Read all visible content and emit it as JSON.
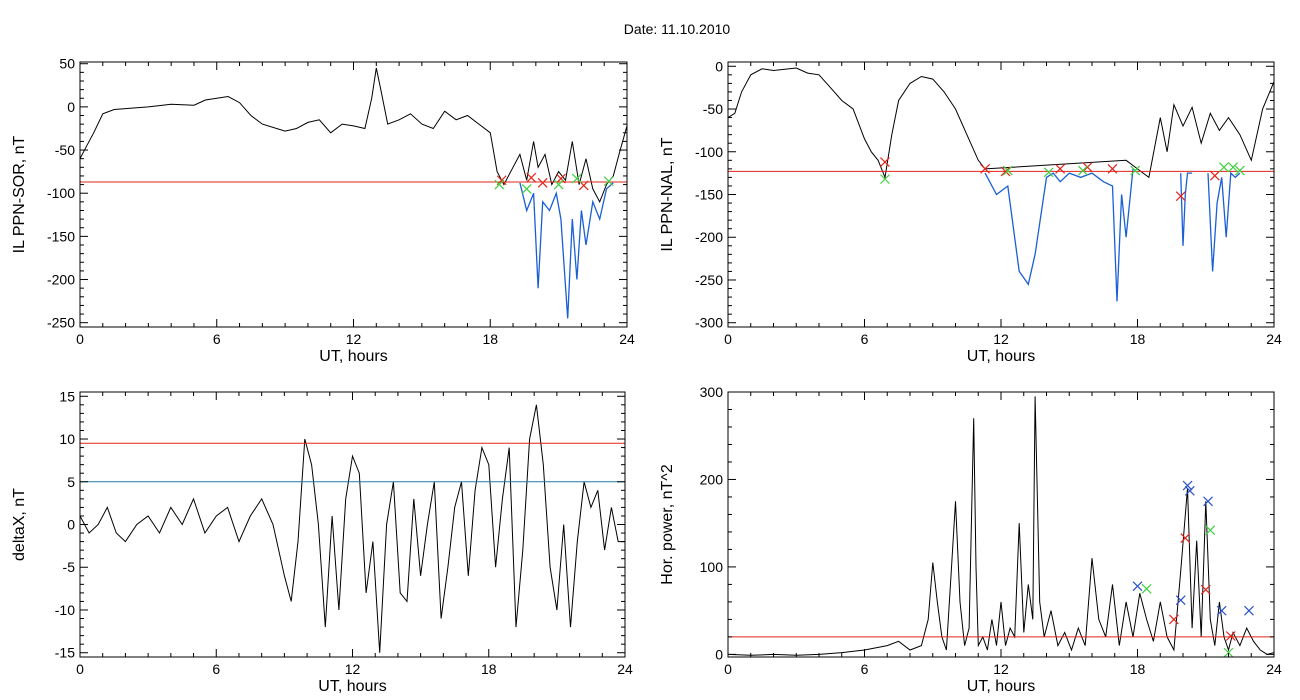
{
  "figure": {
    "title": "Date:  11.10.2010"
  },
  "colors": {
    "trace": "#000000",
    "segment": "#1a5fd6",
    "threshold": "#e2231a",
    "cyan_line": "#1f7fa6",
    "marker_red": "#e2231a",
    "marker_green": "#3fcf3f",
    "marker_blue": "#2a52c8"
  },
  "chart_data": [
    {
      "id": "tl",
      "type": "line",
      "title": "",
      "xlabel": "UT, hours",
      "ylabel": "IL PPN-SOR, nT",
      "xlim": [
        0,
        24
      ],
      "ylim": [
        -255,
        52
      ],
      "xticks": [
        0,
        6,
        12,
        18,
        24
      ],
      "yticks": [
        -250,
        -200,
        -150,
        -100,
        -50,
        0,
        50
      ],
      "grid": false,
      "series": [
        {
          "role": "trace",
          "color": "#000000",
          "x": [
            0,
            0.3,
            0.6,
            1,
            1.5,
            2,
            3,
            4,
            5,
            5.5,
            6,
            6.5,
            7,
            7.5,
            8,
            9,
            9.5,
            10,
            10.5,
            11,
            11.5,
            12,
            12.5,
            12.8,
            13,
            13.2,
            13.5,
            14,
            14.5,
            15,
            15.5,
            16,
            16.5,
            17,
            17.5,
            18,
            18.3,
            18.6,
            19,
            19.3,
            19.6,
            19.9,
            20.1,
            20.4,
            20.7,
            21,
            21.3,
            21.6,
            21.9,
            22.2,
            22.5,
            22.8,
            23.1,
            23.4,
            23.7,
            24
          ],
          "y": [
            -60,
            -45,
            -30,
            -8,
            -3,
            -2,
            0,
            3,
            2,
            8,
            10,
            12,
            5,
            -10,
            -20,
            -28,
            -25,
            -18,
            -15,
            -30,
            -20,
            -22,
            -25,
            10,
            45,
            20,
            -20,
            -15,
            -8,
            -20,
            -25,
            -5,
            -15,
            -10,
            -20,
            -30,
            -75,
            -90,
            -70,
            -55,
            -85,
            -40,
            -70,
            -55,
            -90,
            -75,
            -85,
            -40,
            -90,
            -60,
            -95,
            -110,
            -90,
            -80,
            -50,
            -22
          ]
        },
        {
          "role": "segment",
          "color": "#1a5fd6",
          "x": [
            19.3,
            19.6,
            19.9,
            20.1,
            20.3,
            20.6,
            20.9,
            21.1,
            21.4,
            21.6,
            21.8,
            22.0,
            22.2,
            22.5,
            22.8,
            23.1,
            23.4
          ],
          "y": [
            -88,
            -120,
            -100,
            -210,
            -110,
            -120,
            -100,
            -130,
            -245,
            -130,
            -200,
            -120,
            -160,
            -110,
            -130,
            -95,
            -88
          ]
        },
        {
          "role": "threshold",
          "color": "#e2231a",
          "x": [
            0,
            24
          ],
          "y": [
            -87,
            -87
          ]
        },
        {
          "role": "markers-red",
          "color": "#e2231a",
          "x": [
            18.5,
            19.8,
            20.3,
            21.1,
            22.1
          ],
          "y": [
            -85,
            -82,
            -88,
            -83,
            -91
          ]
        },
        {
          "role": "markers-green",
          "color": "#3fcf3f",
          "x": [
            18.4,
            19.6,
            21.0,
            21.8,
            23.2
          ],
          "y": [
            -90,
            -95,
            -90,
            -83,
            -86
          ]
        }
      ]
    },
    {
      "id": "tr",
      "type": "line",
      "title": "",
      "xlabel": "UT, hours",
      "ylabel": "IL PPN-NAL, nT",
      "xlim": [
        0,
        24
      ],
      "ylim": [
        -305,
        5
      ],
      "xticks": [
        0,
        6,
        12,
        18,
        24
      ],
      "yticks": [
        -300,
        -250,
        -200,
        -150,
        -100,
        -50,
        0
      ],
      "grid": false,
      "series": [
        {
          "role": "trace",
          "color": "#000000",
          "x": [
            0,
            0.3,
            0.6,
            1,
            1.5,
            2,
            3,
            3.5,
            4,
            4.5,
            5,
            5.5,
            6,
            6.3,
            6.6,
            6.9,
            7.2,
            7.5,
            8,
            8.5,
            9,
            9.5,
            10,
            10.5,
            11,
            11.3,
            17.5,
            18,
            18.5,
            19,
            19.3,
            19.6,
            20,
            20.4,
            20.8,
            21.2,
            21.6,
            22,
            22.5,
            23,
            23.5,
            24
          ],
          "y": [
            -60,
            -55,
            -30,
            -10,
            -3,
            -5,
            -2,
            -8,
            -10,
            -25,
            -40,
            -50,
            -85,
            -100,
            -110,
            -130,
            -80,
            -40,
            -20,
            -12,
            -15,
            -30,
            -50,
            -80,
            -110,
            -120,
            -110,
            -120,
            -130,
            -60,
            -100,
            -45,
            -70,
            -48,
            -90,
            -55,
            -75,
            -60,
            -80,
            -110,
            -50,
            -18
          ]
        },
        {
          "role": "segment",
          "color": "#1a5fd6",
          "x": [
            11.3,
            11.8,
            12.3,
            12.8,
            13.2,
            13.5,
            14,
            14.3,
            14.6,
            15,
            15.5,
            16,
            16.5,
            16.9,
            17.1,
            17.3,
            17.5,
            17.8
          ],
          "y": [
            -125,
            -150,
            -140,
            -240,
            -255,
            -220,
            -130,
            -125,
            -135,
            -125,
            -130,
            -125,
            -135,
            -140,
            -275,
            -150,
            -200,
            -120
          ]
        },
        {
          "role": "segment",
          "color": "#1a5fd6",
          "x": [
            19.9,
            20.0,
            20.1,
            20.2,
            20.4
          ],
          "y": [
            -125,
            -210,
            -150,
            -125,
            -125
          ]
        },
        {
          "role": "segment",
          "color": "#1a5fd6",
          "x": [
            21.1,
            21.3,
            21.5,
            21.7,
            21.9,
            22.1,
            22.3,
            22.5
          ],
          "y": [
            -125,
            -240,
            -160,
            -130,
            -200,
            -125,
            -130,
            -125
          ]
        },
        {
          "role": "threshold",
          "color": "#e2231a",
          "x": [
            0,
            24
          ],
          "y": [
            -123,
            -123
          ]
        },
        {
          "role": "markers-red",
          "color": "#e2231a",
          "x": [
            6.9,
            11.3,
            12.2,
            14.6,
            15.8,
            16.9,
            19.9,
            21.4
          ],
          "y": [
            -112,
            -120,
            -123,
            -120,
            -118,
            -120,
            -152,
            -128
          ]
        },
        {
          "role": "markers-green",
          "color": "#3fcf3f",
          "x": [
            6.9,
            12.3,
            14.1,
            15.6,
            17.9,
            21.8,
            22.2,
            22.5
          ],
          "y": [
            -132,
            -122,
            -124,
            -122,
            -122,
            -118,
            -118,
            -122
          ]
        }
      ]
    },
    {
      "id": "bl",
      "type": "line",
      "title": "",
      "xlabel": "UT, hours",
      "ylabel": "deltaX, nT",
      "xlim": [
        0,
        24
      ],
      "ylim": [
        -15.5,
        15.5
      ],
      "xticks": [
        0,
        6,
        12,
        18,
        24
      ],
      "yticks": [
        -15,
        -10,
        -5,
        0,
        5,
        10,
        15
      ],
      "grid": false,
      "series": [
        {
          "role": "trace",
          "color": "#000000",
          "x": [
            0,
            0.4,
            0.8,
            1.2,
            1.6,
            2,
            2.5,
            3,
            3.5,
            4,
            4.5,
            5,
            5.5,
            6,
            6.5,
            7,
            7.5,
            8,
            8.5,
            9,
            9.3,
            9.6,
            9.9,
            10.2,
            10.5,
            10.8,
            11.1,
            11.4,
            11.7,
            12,
            12.3,
            12.6,
            12.9,
            13.2,
            13.5,
            13.8,
            14.1,
            14.4,
            14.7,
            15,
            15.3,
            15.6,
            15.9,
            16.2,
            16.5,
            16.8,
            17.1,
            17.4,
            17.7,
            18,
            18.3,
            18.6,
            18.9,
            19.2,
            19.5,
            19.8,
            20.1,
            20.4,
            20.7,
            21,
            21.3,
            21.6,
            21.9,
            22.2,
            22.5,
            22.8,
            23.1,
            23.4,
            23.7,
            24
          ],
          "y": [
            1,
            -1,
            0,
            2,
            -1,
            -2,
            0,
            1,
            -1,
            2,
            0,
            3,
            -1,
            1,
            2,
            -2,
            1,
            3,
            0,
            -6,
            -9,
            -2,
            10,
            7,
            0,
            -12,
            1,
            -10,
            3,
            8,
            6,
            -8,
            -2,
            -15,
            0,
            5,
            -8,
            -9,
            3,
            -6,
            0,
            5,
            -11,
            -5,
            2,
            5,
            -6,
            4,
            9,
            7,
            -5,
            3,
            9,
            -12,
            -3,
            10,
            14,
            7,
            -5,
            -10,
            0,
            -12,
            -2,
            5,
            2,
            4,
            -3,
            2,
            -2,
            -2
          ]
        },
        {
          "role": "threshold",
          "color": "#e2231a",
          "x": [
            0,
            24
          ],
          "y": [
            9.5,
            9.5
          ]
        },
        {
          "role": "threshold-2",
          "color": "#1f7fa6",
          "x": [
            0,
            24
          ],
          "y": [
            5,
            5
          ]
        }
      ]
    },
    {
      "id": "br",
      "type": "line",
      "title": "",
      "xlabel": "UT, hours",
      "ylabel": "Hor. power, nT^2",
      "xlim": [
        0,
        24
      ],
      "ylim": [
        -3,
        300
      ],
      "xticks": [
        0,
        6,
        12,
        18,
        24
      ],
      "yticks": [
        0,
        100,
        200,
        300
      ],
      "grid": false,
      "series": [
        {
          "role": "trace",
          "color": "#000000",
          "x": [
            0,
            1,
            2,
            3,
            4,
            5,
            6,
            7,
            7.5,
            8,
            8.5,
            8.8,
            9.0,
            9.2,
            9.4,
            9.6,
            9.8,
            10.0,
            10.2,
            10.4,
            10.6,
            10.8,
            10.9,
            11.0,
            11.2,
            11.4,
            11.6,
            11.8,
            12.0,
            12.2,
            12.4,
            12.6,
            12.8,
            13.0,
            13.2,
            13.4,
            13.5,
            13.7,
            13.9,
            14.2,
            14.5,
            14.8,
            15.1,
            15.4,
            15.7,
            16.0,
            16.3,
            16.6,
            16.9,
            17.2,
            17.5,
            17.8,
            18.1,
            18.4,
            18.7,
            19.0,
            19.3,
            19.6,
            19.9,
            20.2,
            20.4,
            20.6,
            20.8,
            21.0,
            21.2,
            21.4,
            21.6,
            21.8,
            22.0,
            22.2,
            22.5,
            22.8,
            23.1,
            23.4,
            23.7,
            24
          ],
          "y": [
            0,
            -1,
            0,
            -1,
            0,
            2,
            5,
            10,
            15,
            5,
            10,
            40,
            105,
            60,
            20,
            5,
            90,
            175,
            60,
            10,
            30,
            270,
            100,
            10,
            20,
            5,
            40,
            10,
            60,
            10,
            30,
            20,
            150,
            25,
            80,
            40,
            295,
            60,
            20,
            50,
            10,
            25,
            5,
            30,
            10,
            110,
            40,
            20,
            80,
            10,
            60,
            20,
            70,
            40,
            15,
            60,
            20,
            5,
            95,
            190,
            30,
            130,
            20,
            175,
            40,
            10,
            60,
            20,
            5,
            25,
            10,
            30,
            15,
            5,
            0,
            2
          ]
        },
        {
          "role": "threshold",
          "color": "#e2231a",
          "x": [
            0,
            24
          ],
          "y": [
            20,
            20
          ]
        },
        {
          "role": "markers-blue",
          "color": "#2a52c8",
          "x": [
            18.0,
            19.9,
            20.2,
            20.3,
            21.1,
            21.7,
            22.9
          ],
          "y": [
            78,
            62,
            193,
            187,
            175,
            50,
            50
          ]
        },
        {
          "role": "markers-green",
          "color": "#3fcf3f",
          "x": [
            18.4,
            21.2,
            22.0
          ],
          "y": [
            75,
            142,
            2
          ]
        },
        {
          "role": "markers-red",
          "color": "#e2231a",
          "x": [
            19.6,
            20.1,
            21.0,
            22.1
          ],
          "y": [
            40,
            133,
            74,
            21
          ]
        }
      ]
    }
  ]
}
